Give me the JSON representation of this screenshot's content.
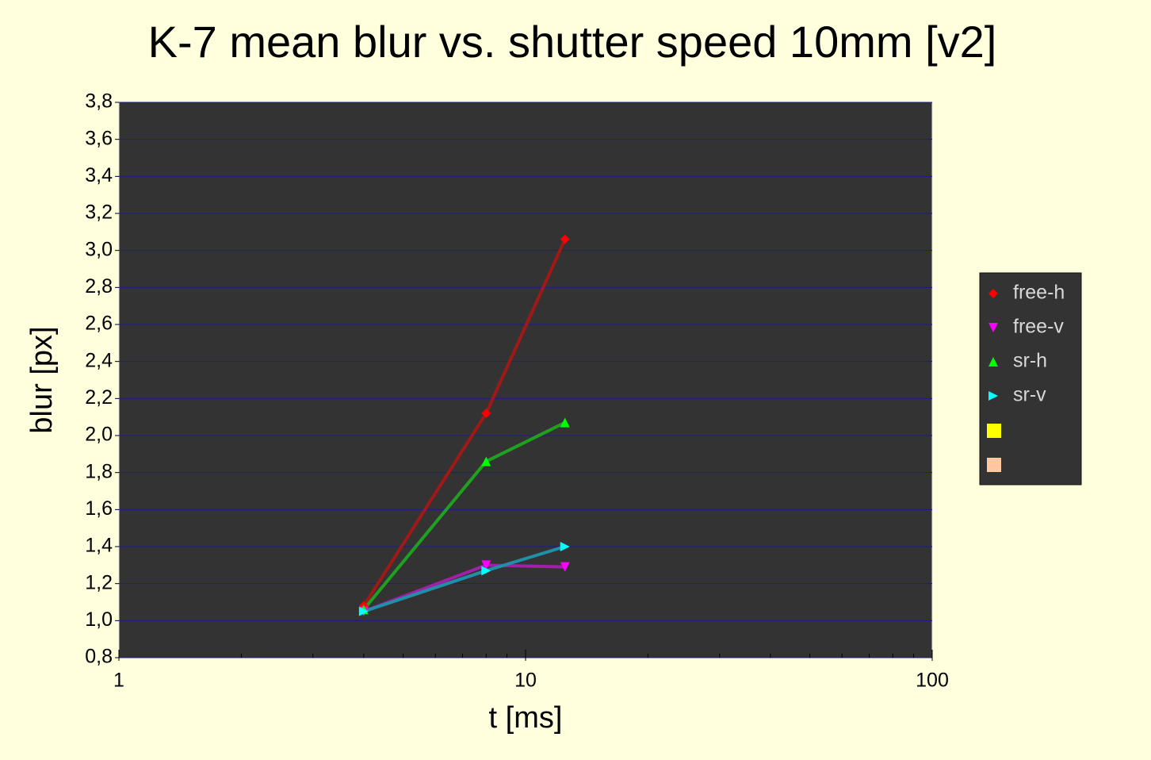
{
  "chart_data": {
    "type": "line",
    "title": "K-7 mean blur vs. shutter speed 10mm [v2]",
    "x_label": "t [ms]",
    "y_label": "blur [px]",
    "x": [
      4,
      8,
      12.5
    ],
    "x_log": true,
    "xlim": [
      1,
      100
    ],
    "xticks": [
      1,
      10,
      100
    ],
    "xminor_ticks": [
      2,
      3,
      4,
      5,
      6,
      7,
      8,
      9,
      20,
      30,
      40,
      50,
      60,
      70,
      80,
      90
    ],
    "ylim": [
      0.8,
      3.8
    ],
    "yticks": [
      {
        "value": 0.8,
        "label": "0,8"
      },
      {
        "value": 1.0,
        "label": "1,0"
      },
      {
        "value": 1.2,
        "label": "1,2"
      },
      {
        "value": 1.4,
        "label": "1,4"
      },
      {
        "value": 1.6,
        "label": "1,6"
      },
      {
        "value": 1.8,
        "label": "1,8"
      },
      {
        "value": 2.0,
        "label": "2,0"
      },
      {
        "value": 2.2,
        "label": "2,2"
      },
      {
        "value": 2.4,
        "label": "2,4"
      },
      {
        "value": 2.6,
        "label": "2,6"
      },
      {
        "value": 2.8,
        "label": "2,8"
      },
      {
        "value": 3.0,
        "label": "3,0"
      },
      {
        "value": 3.2,
        "label": "3,2"
      },
      {
        "value": 3.4,
        "label": "3,4"
      },
      {
        "value": 3.6,
        "label": "3,6"
      },
      {
        "value": 3.8,
        "label": "3,8"
      }
    ],
    "grid": true,
    "legend": "right",
    "series": [
      {
        "name": "free-h",
        "color": "#ff0000",
        "line_color": "#a01818",
        "marker": "diamond",
        "values": [
          1.08,
          2.12,
          3.06
        ]
      },
      {
        "name": "free-v",
        "color": "#ff00ff",
        "line_color": "#a020a8",
        "marker": "triangle-down",
        "values": [
          1.05,
          1.3,
          1.29
        ]
      },
      {
        "name": "sr-h",
        "color": "#00ff00",
        "line_color": "#20a020",
        "marker": "triangle-up",
        "values": [
          1.06,
          1.86,
          2.07
        ]
      },
      {
        "name": "sr-v",
        "color": "#00ffff",
        "line_color": "#2090a8",
        "marker": "triangle-right",
        "values": [
          1.05,
          1.27,
          1.4
        ]
      }
    ]
  }
}
